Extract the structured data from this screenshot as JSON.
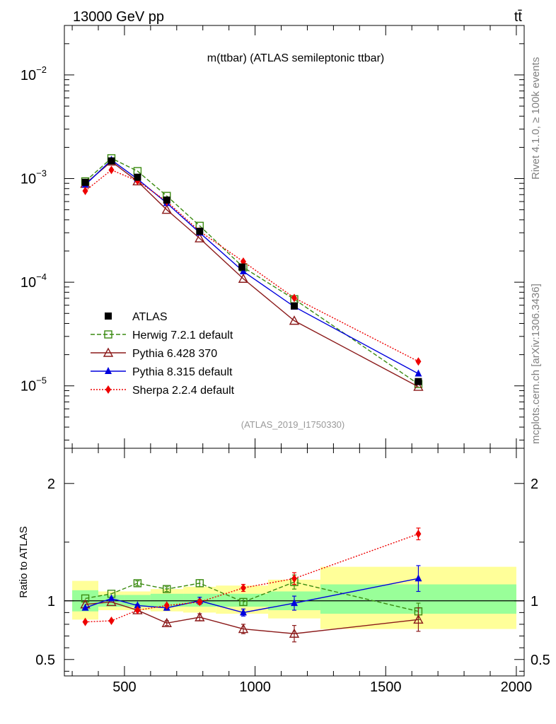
{
  "header": {
    "left_title": "13000 GeV pp",
    "right_title": "tt̄"
  },
  "side_labels": {
    "rivet": "Rivet 4.1.0, ≥ 100k events",
    "mcplots": "mcplots.cern.ch [arXiv:1306.3436]"
  },
  "chart_data": {
    "type": "line",
    "title": "m(ttbar) (ATLAS semileptonic ttbar)",
    "analysis_id": "(ATLAS_2019_I1750330)",
    "xlim": [
      270,
      2030
    ],
    "xticks": [
      500,
      1000,
      1500,
      2000
    ],
    "xticklabels": [
      "500",
      "1000",
      "1500",
      "2000"
    ],
    "main_panel": {
      "yscale": "log",
      "ylim": [
        2.5e-06,
        0.03
      ],
      "yticks": [
        1e-05,
        0.0001,
        0.001,
        0.01
      ],
      "yticklabels": [
        [
          "10",
          "−5"
        ],
        [
          "10",
          "−4"
        ],
        [
          "10",
          "−3"
        ],
        [
          "10",
          "−2"
        ]
      ]
    },
    "ratio_panel": {
      "ylabel": "Ratio to ATLAS",
      "ylim": [
        0.36,
        2.3
      ],
      "yticks": [
        0.5,
        1,
        2
      ],
      "yticklabels": [
        "0.5",
        "1",
        "2"
      ],
      "bands": [
        {
          "x0": 300,
          "x1": 400,
          "green": [
            0.91,
            1.09
          ],
          "yellow": [
            0.84,
            1.17
          ]
        },
        {
          "x0": 400,
          "x1": 500,
          "green": [
            0.95,
            1.05
          ],
          "yellow": [
            0.92,
            1.08
          ]
        },
        {
          "x0": 500,
          "x1": 600,
          "green": [
            0.95,
            1.05
          ],
          "yellow": [
            0.92,
            1.08
          ]
        },
        {
          "x0": 600,
          "x1": 725,
          "green": [
            0.95,
            1.06
          ],
          "yellow": [
            0.91,
            1.1
          ]
        },
        {
          "x0": 725,
          "x1": 850,
          "green": [
            0.95,
            1.06
          ],
          "yellow": [
            0.9,
            1.12
          ]
        },
        {
          "x0": 850,
          "x1": 1050,
          "green": [
            0.95,
            1.06
          ],
          "yellow": [
            0.89,
            1.13
          ]
        },
        {
          "x0": 1050,
          "x1": 1250,
          "green": [
            0.92,
            1.08
          ],
          "yellow": [
            0.85,
            1.18
          ]
        },
        {
          "x0": 1250,
          "x1": 2000,
          "green": [
            0.89,
            1.14
          ],
          "yellow": [
            0.76,
            1.29
          ]
        }
      ]
    },
    "series": [
      {
        "name": "ATLAS",
        "color": "#000000",
        "marker": "square-filled",
        "line": "none",
        "x": [
          350,
          450,
          550,
          662,
          788,
          950,
          1150,
          1625
        ],
        "y": [
          0.00092,
          0.00148,
          0.00103,
          0.00062,
          0.00031,
          0.00014,
          5.9e-05,
          1.1e-05
        ],
        "ratio": [
          1,
          1,
          1,
          1,
          1,
          1,
          1,
          1
        ]
      },
      {
        "name": "Herwig 7.2.1 default",
        "color": "#3a8a10",
        "marker": "square-open",
        "line": "dashed",
        "x": [
          350,
          450,
          550,
          662,
          788,
          955,
          1150,
          1625
        ],
        "y": [
          0.00094,
          0.00157,
          0.00118,
          0.00068,
          0.00035,
          0.000139,
          6.85e-05,
          1.04e-05
        ],
        "ratio": [
          1.02,
          1.06,
          1.15,
          1.1,
          1.15,
          0.99,
          1.16,
          0.91
        ],
        "ratio_err": [
          0,
          0,
          0.02,
          0.02,
          0.03,
          0.03,
          0.06,
          0.07
        ]
      },
      {
        "name": "Pythia 6.428 370",
        "color": "#8b1a1a",
        "marker": "triangle-open",
        "line": "solid",
        "x": [
          350,
          450,
          550,
          662,
          788,
          955,
          1150,
          1625
        ],
        "y": [
          0.00089,
          0.00146,
          0.00094,
          0.0005,
          0.000265,
          0.000108,
          4.25e-05,
          9.8e-06
        ],
        "ratio": [
          0.97,
          0.99,
          0.92,
          0.81,
          0.86,
          0.76,
          0.72,
          0.84
        ],
        "ratio_err": [
          0,
          0,
          0.01,
          0.02,
          0.03,
          0.04,
          0.07,
          0.1
        ]
      },
      {
        "name": "Pythia 8.315 default",
        "color": "#0000dd",
        "marker": "triangle-filled",
        "line": "solid",
        "x": [
          350,
          450,
          550,
          662,
          788,
          955,
          1150,
          1625
        ],
        "y": [
          0.00087,
          0.00151,
          0.00099,
          0.00058,
          0.0003,
          0.000127,
          5.8e-05,
          1.31e-05
        ],
        "ratio": [
          0.94,
          1.02,
          0.96,
          0.94,
          1.0,
          0.9,
          0.98,
          1.19
        ],
        "ratio_err": [
          0,
          0,
          0.01,
          0.02,
          0.03,
          0.03,
          0.06,
          0.11
        ]
      },
      {
        "name": "Sherpa 2.2.4 default",
        "color": "#ee0000",
        "marker": "diamond-filled",
        "line": "dotted",
        "x": [
          350,
          450,
          550,
          662,
          788,
          955,
          1150,
          1625
        ],
        "y": [
          0.00076,
          0.00121,
          0.00095,
          0.0006,
          0.00031,
          0.000158,
          7.05e-05,
          1.72e-05
        ],
        "ratio": [
          0.82,
          0.83,
          0.92,
          0.96,
          0.99,
          1.11,
          1.19,
          1.57
        ],
        "ratio_err": [
          0,
          0,
          0.01,
          0.01,
          0.02,
          0.03,
          0.05,
          0.05
        ]
      }
    ]
  }
}
